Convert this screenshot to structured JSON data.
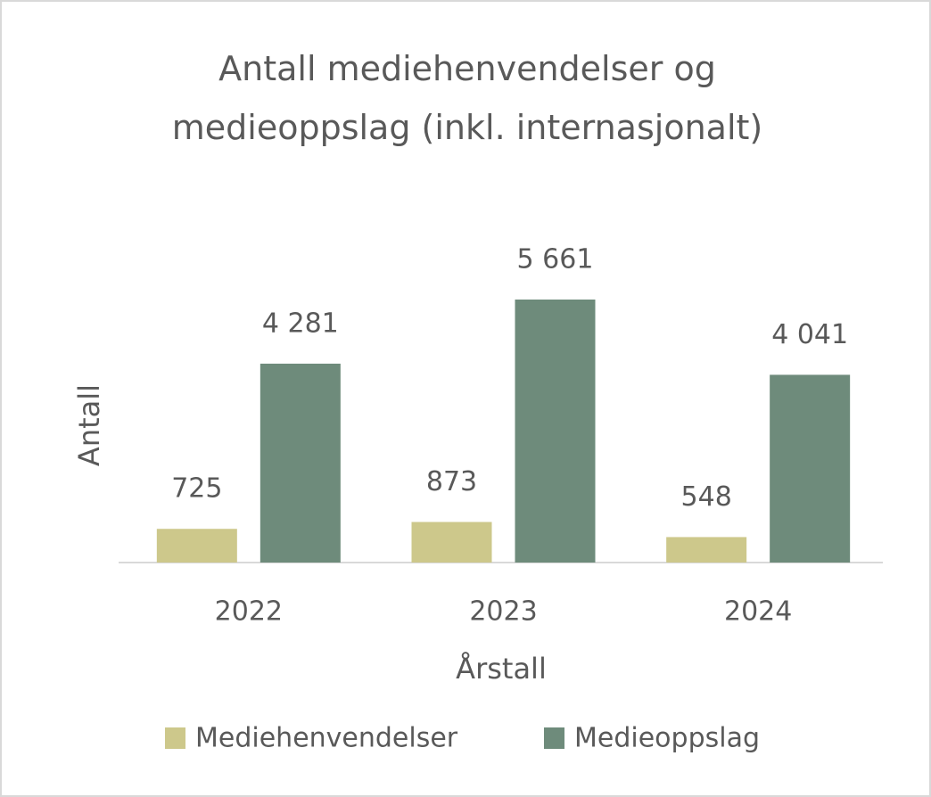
{
  "chart_data": {
    "type": "bar",
    "title": "Antall mediehenvendelser og medieoppslag (inkl. internasjonalt)",
    "x_label": "Årstall",
    "y_label": "Antall",
    "categories": [
      "2022",
      "2023",
      "2024"
    ],
    "series": [
      {
        "name": "Mediehenvendelser",
        "color": "#cdc88b",
        "values": [
          725,
          873,
          548
        ],
        "value_labels": [
          "725",
          "873",
          "548"
        ]
      },
      {
        "name": "Medieoppslag",
        "color": "#6e8b7b",
        "values": [
          4281,
          5661,
          4041
        ],
        "value_labels": [
          "4 281",
          "5 661",
          "4 041"
        ]
      }
    ],
    "legend": "bottom"
  }
}
